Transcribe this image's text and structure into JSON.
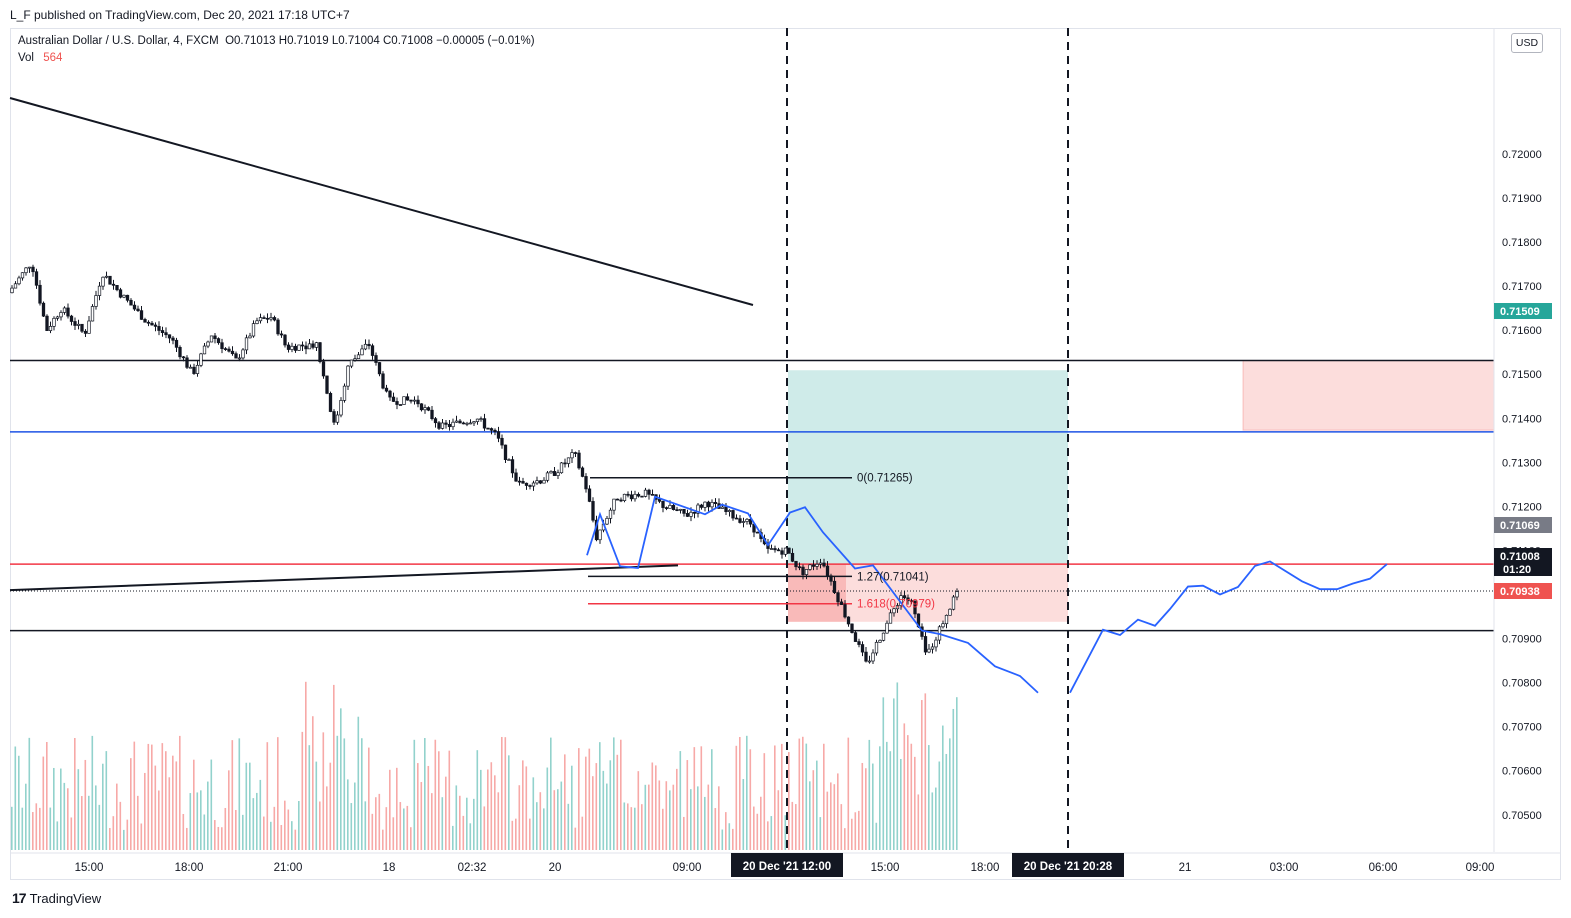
{
  "header": {
    "published": "L_F published on TradingView.com, Dec 20, 2021 17:18 UTC+7"
  },
  "legend": {
    "symbol": "Australian Dollar / U.S. Dollar, 4, FXCM",
    "ohlc": "O0.71013  H0.71019  L0.71004  C0.71008  −0.00005 (−0.01%)",
    "vol_label": "Vol",
    "vol_value": "564"
  },
  "currency_button": "USD",
  "brand": {
    "logo": "17",
    "name": "TradingView"
  },
  "colors": {
    "up": "#26a69a",
    "down": "#ef5350",
    "forecast": "#2962ff",
    "tp_zone": "#26a69a",
    "sl_zone": "#ef5350",
    "line_blue": "#1e53e5",
    "line_red": "#f23645"
  },
  "chart_data": {
    "type": "candlestick",
    "symbol": "AUDUSD",
    "timeframe": "4",
    "ylim": [
      0.7042,
      0.7227
    ],
    "y_ticks": [
      "0.72000",
      "0.71900",
      "0.71800",
      "0.71700",
      "0.71600",
      "0.71500",
      "0.71400",
      "0.71300",
      "0.71200",
      "0.71100",
      "0.71000",
      "0.70900",
      "0.70800",
      "0.70700",
      "0.70600",
      "0.70500"
    ],
    "x_ticks": [
      "15:00",
      "18:00",
      "21:00",
      "18",
      "02:32",
      "20",
      "09:00",
      "12:00",
      "15:00",
      "18:00",
      "20:28",
      "21",
      "03:00",
      "06:00",
      "09:00"
    ],
    "price_labels": [
      {
        "value": "0.71509",
        "color": "#26a69a"
      },
      {
        "value": "0.71069",
        "color": "#787b86"
      },
      {
        "value": "0.71008",
        "color": "#131722",
        "countdown": "01:20"
      },
      {
        "value": "0.70938",
        "color": "#ef5350"
      }
    ],
    "time_labels": [
      "20 Dec '21  12:00",
      "20 Dec '21  20:28"
    ],
    "horizontal_lines": [
      {
        "price": 0.71531,
        "color": "#131722"
      },
      {
        "price": 0.71369,
        "color": "#1e53e5"
      },
      {
        "price": 0.71069,
        "color": "#f23645"
      },
      {
        "price": 0.70918,
        "color": "#131722"
      }
    ],
    "trendlines": [
      {
        "from": [
          "14:00",
          0.71949
        ],
        "to": [
          "12:00 20 Dec",
          0.71519
        ]
      },
      {
        "from": [
          "14:00",
          0.7101
        ],
        "to": [
          "09:00 20 Dec",
          0.71066
        ]
      }
    ],
    "fib_levels": [
      {
        "label": "0(0.71265)",
        "price": 0.71265
      },
      {
        "label": "1.27(0.71041)",
        "price": 0.71041
      },
      {
        "label": "1.618(0.70979)",
        "price": 0.70979
      }
    ],
    "position": {
      "entry": 0.71069,
      "target": 0.71509,
      "stop": 0.70938
    },
    "sl_box": {
      "top": 0.71531,
      "bottom": 0.71373
    },
    "forecast_path": [
      [
        0.71089,
        0.71182,
        0.71064,
        0.7106,
        0.71222,
        0.71182,
        0.71204,
        0.71184,
        0.71112,
        0.71186,
        0.71198,
        0.71141,
        0.71059,
        0.71066,
        0.70969,
        0.70918,
        0.7091,
        0.7089,
        0.70837,
        0.70815,
        0.70777
      ],
      [
        0.70777,
        0.7092,
        0.70908,
        0.70943,
        0.70929,
        0.70967,
        0.71018,
        0.7102,
        0.71,
        0.71017,
        0.71065,
        0.71075,
        0.7103,
        0.71012,
        0.71012,
        0.71025,
        0.71036,
        0.71069
      ]
    ],
    "volume_visible": true
  }
}
